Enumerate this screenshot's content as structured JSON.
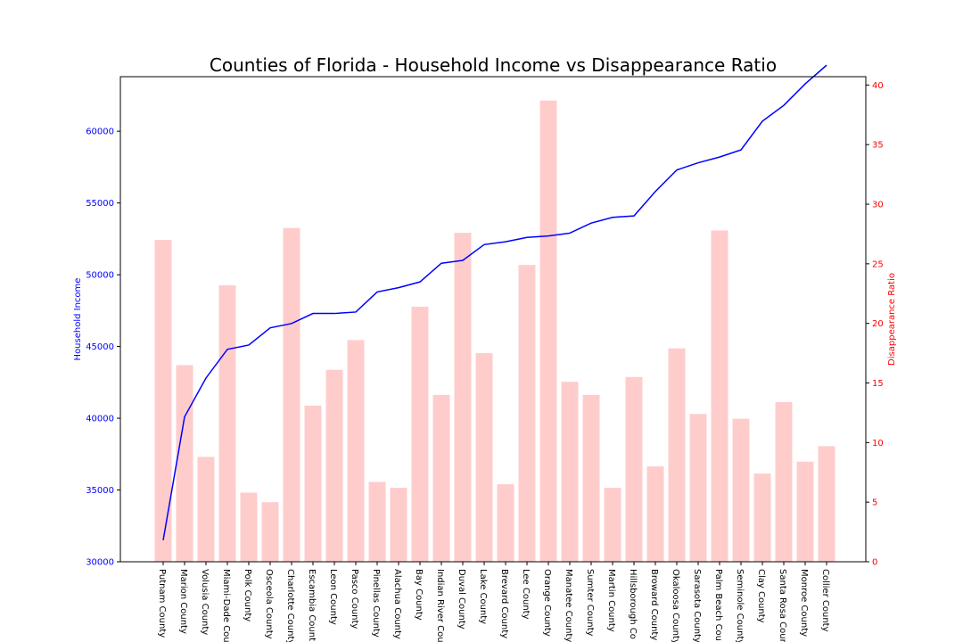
{
  "chart_data": {
    "type": "bar+line",
    "title": "Counties of Florida - Household Income vs Disappearance Ratio",
    "categories": [
      "Putnam County",
      "Marion County",
      "Volusia County",
      "Miami-Dade County",
      "Polk County",
      "Osceola County",
      "Charlotte County",
      "Escambia County",
      "Leon County",
      "Pasco County",
      "Pinellas County",
      "Alachua County",
      "Bay County",
      "Indian River County",
      "Duval County",
      "Lake County",
      "Brevard County",
      "Lee County",
      "Orange County",
      "Manatee County",
      "Sumter County",
      "Martin County",
      "Hillsborough County",
      "Broward County",
      "Okaloosa County",
      "Sarasota County",
      "Palm Beach County",
      "Seminole County",
      "Clay County",
      "Santa Rosa County",
      "Monroe County",
      "Collier County"
    ],
    "x_tick_labels": [
      "Putnam County",
      "Marion County",
      "Volusia County",
      "Miami-Dade Cou",
      "Polk County",
      "Osceola County",
      "Charlotte County",
      "Escambia Count",
      "Leon County",
      "Pasco County",
      "Pinellas County",
      "Alachua County",
      "Bay County",
      "Indian River Cou",
      "Duval County",
      "Lake County",
      "Brevard County",
      "Lee County",
      "Orange County",
      "Manatee County",
      "Sumter County",
      "Martin County",
      "Hillsborough Co",
      "Broward County",
      "Okaloosa County",
      "Sarasota County",
      "Palm Beach Cou",
      "Seminole County",
      "Clay County",
      "Santa Rosa Cour",
      "Monroe County",
      "Collier County"
    ],
    "series": [
      {
        "name": "Household Income",
        "axis": "left",
        "chart": "line",
        "color": "#0000ff",
        "values": [
          31500,
          40100,
          42800,
          44800,
          45100,
          46300,
          46600,
          47300,
          47300,
          47400,
          48800,
          49100,
          49500,
          50800,
          51000,
          52100,
          52300,
          52600,
          52700,
          52900,
          53600,
          54000,
          54100,
          55800,
          57300,
          57800,
          58200,
          58700,
          60700,
          61800,
          63300,
          64600
        ]
      },
      {
        "name": "Disappearance Ratio",
        "axis": "right",
        "chart": "bar",
        "color": "#ffcccc",
        "values": [
          27.0,
          16.5,
          8.8,
          23.2,
          5.8,
          5.0,
          28.0,
          13.1,
          16.1,
          18.6,
          6.7,
          6.2,
          21.4,
          14.0,
          27.6,
          17.5,
          6.5,
          24.9,
          38.7,
          15.1,
          14.0,
          6.2,
          15.5,
          8.0,
          17.9,
          12.4,
          27.8,
          12.0,
          7.4,
          13.4,
          8.4,
          9.7
        ]
      }
    ],
    "ylabel_left": "Household Income",
    "ylabel_right": "Disappearance Ratio",
    "ylim_left": [
      30000,
      63800
    ],
    "ylim_right": [
      0,
      40.7
    ],
    "yticks_left": [
      30000,
      35000,
      40000,
      45000,
      50000,
      55000,
      60000
    ],
    "yticks_right": [
      0,
      5,
      10,
      15,
      20,
      25,
      30,
      35,
      40
    ],
    "left_axis_color": "#0000ff",
    "right_axis_color": "#ff0000",
    "grid": false,
    "legend": "none"
  }
}
